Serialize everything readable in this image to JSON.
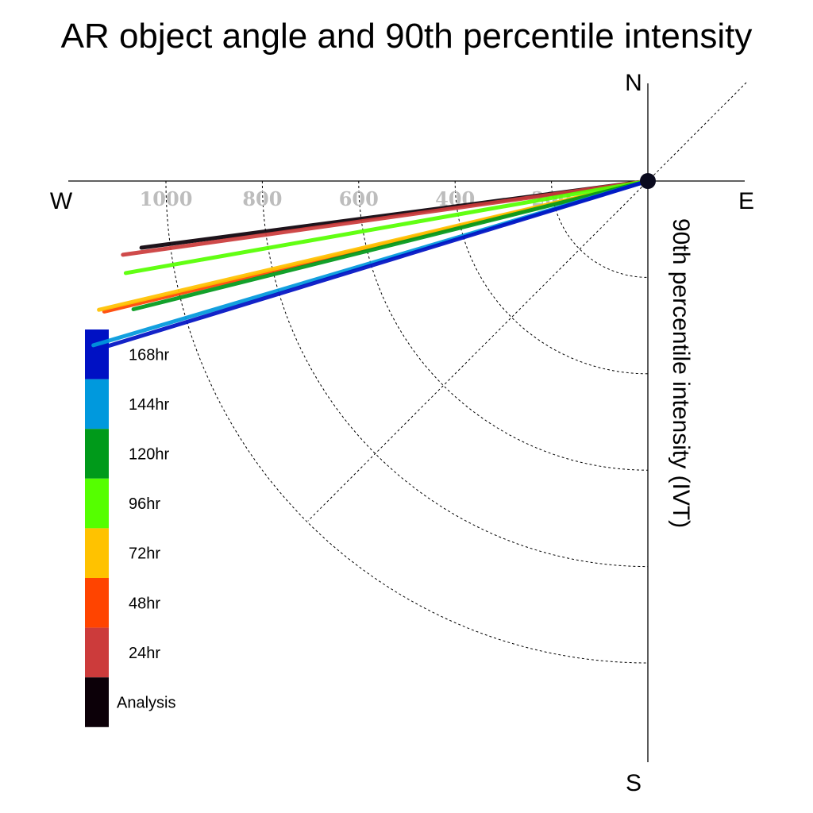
{
  "chart_data": {
    "type": "polar-vector",
    "title": "AR object angle and 90th percentile intensity",
    "ylabel": "90th percentile intensity (IVT)",
    "compass": {
      "n": "N",
      "e": "E",
      "s": "S",
      "w": "W"
    },
    "radial_ticks": [
      200,
      400,
      600,
      800,
      1000
    ],
    "radial_range": [
      0,
      1200
    ],
    "grid": true,
    "legend_position": "left",
    "series": [
      {
        "name": "168hr",
        "color": "#0011c4",
        "angle_deg": 253.0,
        "value": 1200
      },
      {
        "name": "144hr",
        "color": "#0099dd",
        "angle_deg": 253.5,
        "value": 1200
      },
      {
        "name": "120hr",
        "color": "#009a1a",
        "angle_deg": 256.0,
        "value": 1100
      },
      {
        "name": "96hr",
        "color": "#55ff00",
        "angle_deg": 260.0,
        "value": 1100
      },
      {
        "name": "72hr",
        "color": "#ffc200",
        "angle_deg": 256.8,
        "value": 1170
      },
      {
        "name": "48hr",
        "color": "#ff4400",
        "angle_deg": 256.5,
        "value": 1160
      },
      {
        "name": "24hr",
        "color": "#cc3b3b",
        "angle_deg": 262.0,
        "value": 1100
      },
      {
        "name": "Analysis",
        "color": "#0c0008",
        "angle_deg": 262.5,
        "value": 1060
      }
    ]
  }
}
